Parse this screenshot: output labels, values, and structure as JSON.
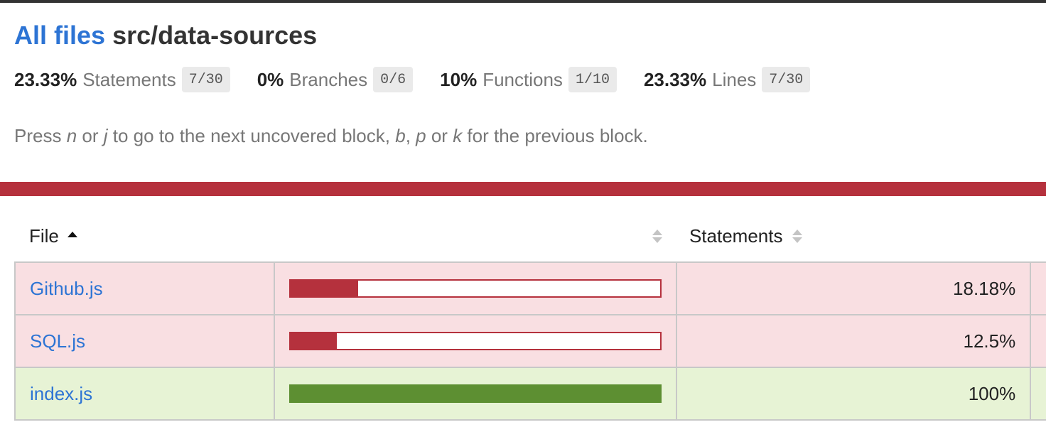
{
  "header": {
    "all_files_link": "All files",
    "path": "src/data-sources"
  },
  "summary": [
    {
      "pct": "23.33%",
      "label": "Statements",
      "fraction": "7/30"
    },
    {
      "pct": "0%",
      "label": "Branches",
      "fraction": "0/6"
    },
    {
      "pct": "10%",
      "label": "Functions",
      "fraction": "1/10"
    },
    {
      "pct": "23.33%",
      "label": "Lines",
      "fraction": "7/30"
    }
  ],
  "hint": {
    "press": "Press ",
    "key_n": "n",
    "or1": " or ",
    "key_j": "j",
    "next_text": " to go to the next uncovered block, ",
    "key_b": "b",
    "comma": ", ",
    "key_p": "p",
    "or2": " or ",
    "key_k": "k",
    "prev_text": " for the previous block."
  },
  "colors": {
    "status_low": "#b5313d",
    "status_high": "#5d8f32",
    "row_low_bg": "#f9dfe2",
    "row_high_bg": "#e7f3d5",
    "link": "#2d74d4"
  },
  "table": {
    "columns": {
      "file": "File",
      "statements": "Statements"
    },
    "rows": [
      {
        "file": "Github.js",
        "pct_text": "18.18%",
        "coverage": 0.1818,
        "status": "low"
      },
      {
        "file": "SQL.js",
        "pct_text": "12.5%",
        "coverage": 0.125,
        "status": "low"
      },
      {
        "file": "index.js",
        "pct_text": "100%",
        "coverage": 1.0,
        "status": "high"
      }
    ]
  }
}
